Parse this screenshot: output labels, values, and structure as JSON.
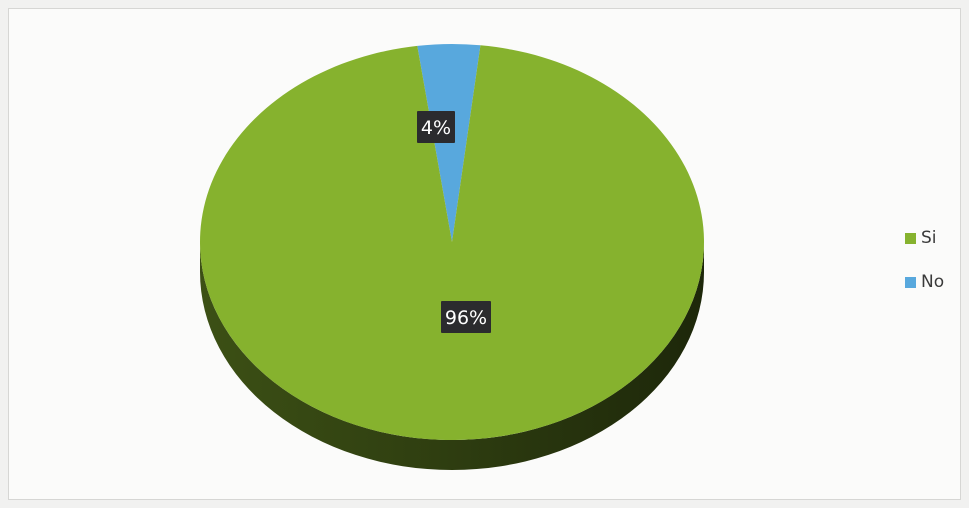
{
  "chart_data": {
    "type": "pie",
    "title": "",
    "categories": [
      "Si",
      "No"
    ],
    "values": [
      96,
      4
    ],
    "data_labels": [
      "96%",
      "4%"
    ],
    "colors": [
      "#86b22e",
      "#58a8dd"
    ],
    "style": "3d-pie",
    "legend_position": "right"
  }
}
